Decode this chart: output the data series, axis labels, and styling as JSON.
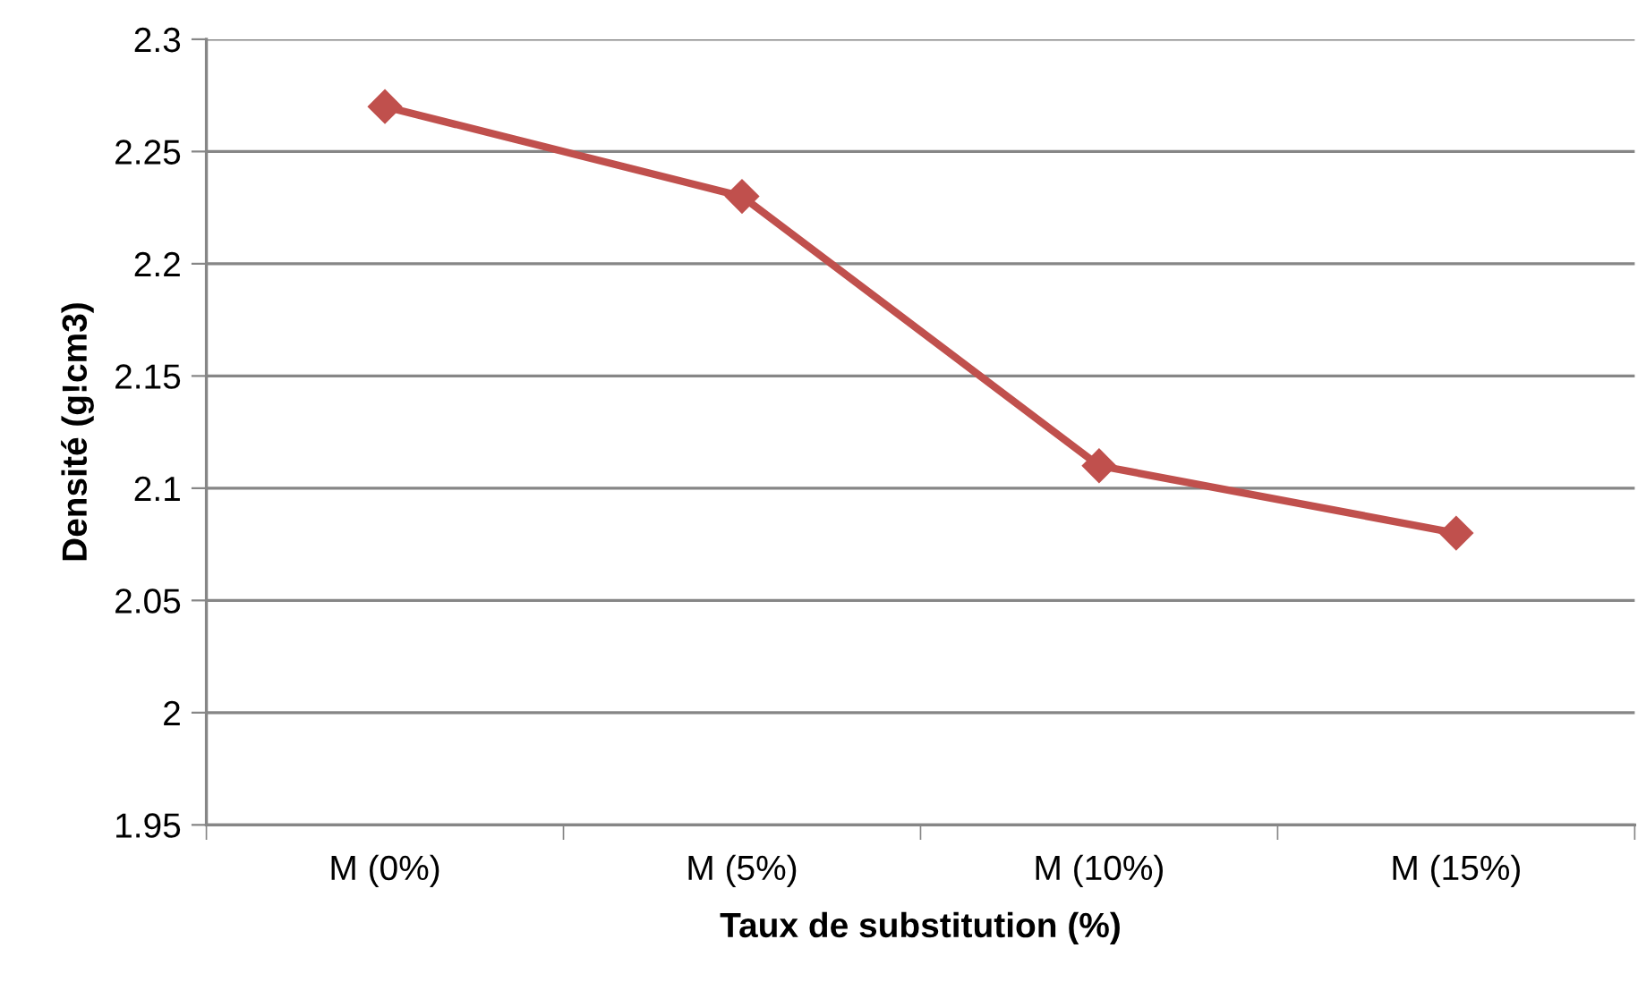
{
  "chart_data": {
    "type": "line",
    "xlabel": "Taux de substitution (%)",
    "ylabel": "Densité (g!cm3)",
    "categories": [
      "M (0%)",
      "M (5%)",
      "M (10%)",
      "M (15%)"
    ],
    "series": [
      {
        "color": "#c0504d",
        "values": [
          2.27,
          2.23,
          2.11,
          2.08
        ]
      }
    ],
    "ylim": [
      1.95,
      2.3
    ],
    "yticks": [
      1.95,
      2,
      2.05,
      2.1,
      2.15,
      2.2,
      2.25,
      2.3
    ],
    "grid": "y",
    "marker": "diamond",
    "line_style": "solid"
  }
}
